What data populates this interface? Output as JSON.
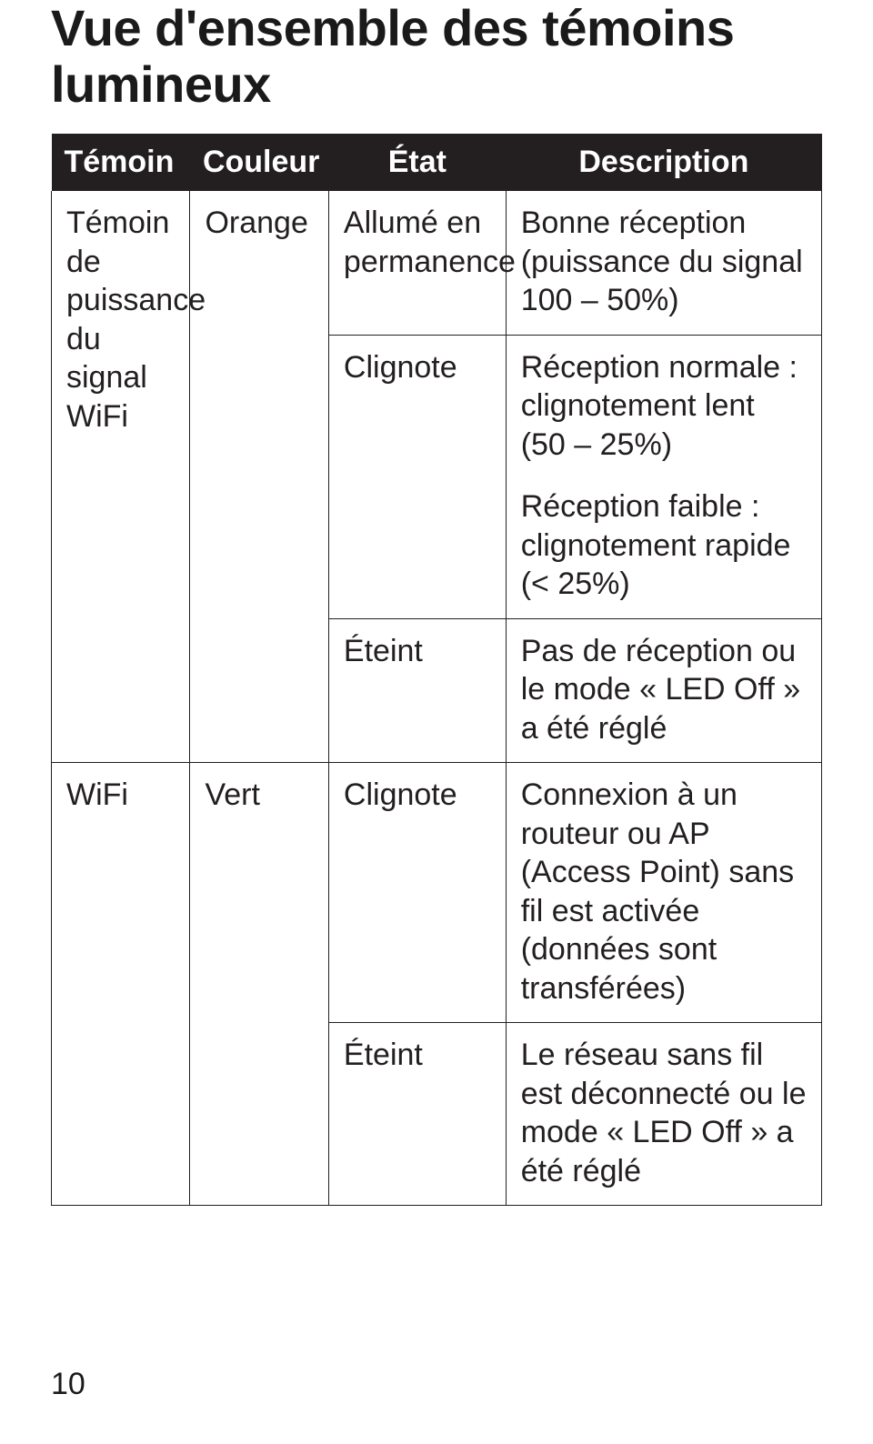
{
  "colors": {
    "header_bg": "#231f20",
    "header_text": "#ffffff",
    "cell_border": "#231f20",
    "body_text": "#231f20",
    "page_bg": "#ffffff"
  },
  "page_number": "10",
  "title": "Vue d'ensemble des témoins lumineux",
  "table": {
    "headers": {
      "col1": "Témoin",
      "col2": "Couleur",
      "col3": "État",
      "col4": "Description"
    },
    "rows": {
      "wifi_signal": {
        "name": "Témoin de puissance du signal WiFi",
        "color": "Orange",
        "states": {
          "on": {
            "state": "Allumé en permanence",
            "desc": "Bonne réception (puissance du signal 100 – 50%)"
          },
          "blink": {
            "state": "Clignote",
            "desc_a": "Réception normale : clignotement lent (50 – 25%)",
            "desc_b": "Réception faible : clignotement rapide (< 25%)"
          },
          "off": {
            "state": "Éteint",
            "desc": "Pas de réception ou le mode « LED Off » a été réglé"
          }
        }
      },
      "wifi": {
        "name": "WiFi",
        "color": "Vert",
        "states": {
          "blink": {
            "state": "Clignote",
            "desc": "Connexion à un routeur ou AP (Access Point) sans fil est activée (données sont transférées)"
          },
          "off": {
            "state": "Éteint",
            "desc": "Le réseau sans fil est déconnecté ou le mode « LED Off » a été réglé"
          }
        }
      }
    }
  }
}
